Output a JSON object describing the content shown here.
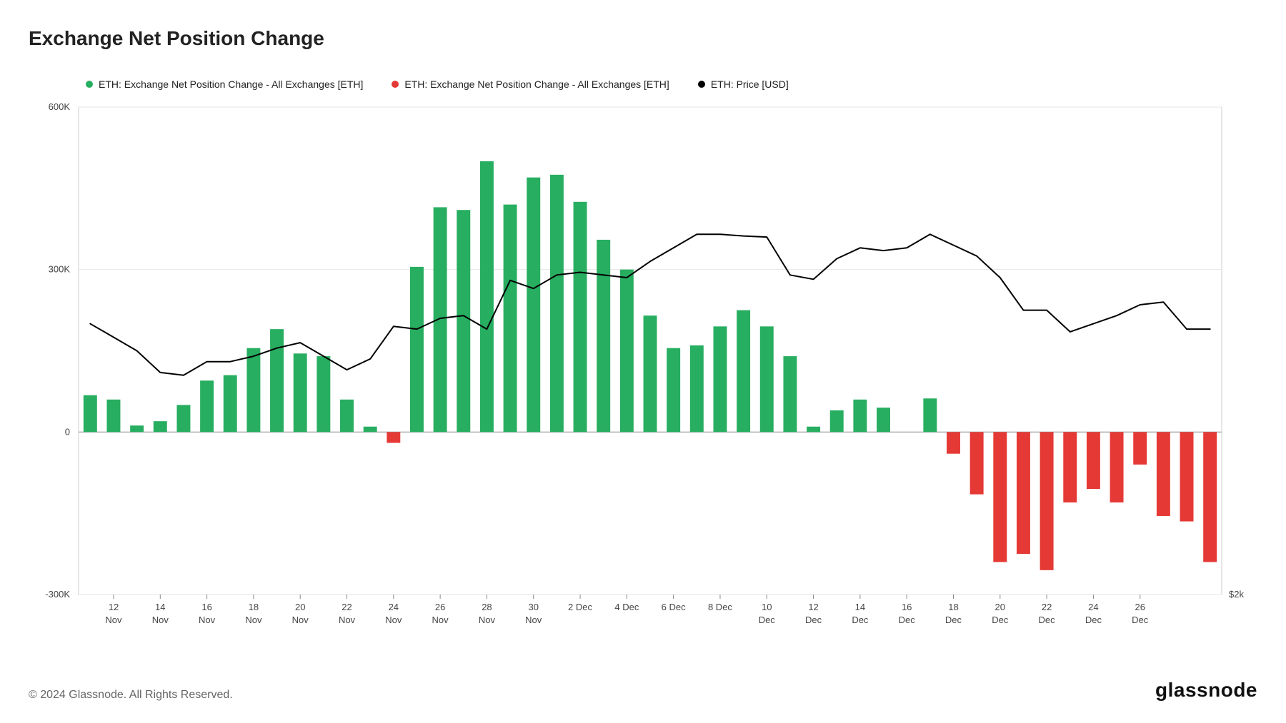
{
  "title": "Exchange Net Position Change",
  "footer_copyright": "© 2024 Glassnode. All Rights Reserved.",
  "footer_brand": "glassnode",
  "legend": [
    {
      "label": "ETH: Exchange Net Position Change - All Exchanges [ETH]",
      "color": "#27ae60",
      "marker": "circle"
    },
    {
      "label": "ETH: Exchange Net Position Change - All Exchanges [ETH]",
      "color": "#e53935",
      "marker": "circle"
    },
    {
      "label": "ETH: Price [USD]",
      "color": "#000000",
      "marker": "circle"
    }
  ],
  "chart": {
    "type": "bar+line",
    "background_color": "#ffffff",
    "plot_border_color": "#cccccc",
    "grid_color": "#e6e6e6",
    "baseline_color": "#999999",
    "colors": {
      "positive": "#27ae60",
      "negative": "#e53935",
      "line": "#000000"
    },
    "left_axis": {
      "min": -300000,
      "max": 600000,
      "ticks": [
        {
          "v": 600000,
          "label": "600K"
        },
        {
          "v": 300000,
          "label": "300K"
        },
        {
          "v": 0,
          "label": "0"
        },
        {
          "v": -300000,
          "label": "-300K"
        }
      ]
    },
    "right_axis": {
      "ticks": [
        {
          "y_at_left_value": -300000,
          "label": "$2k"
        }
      ]
    },
    "x_ticks": [
      {
        "idx": 1,
        "line1": "12",
        "line2": "Nov"
      },
      {
        "idx": 3,
        "line1": "14",
        "line2": "Nov"
      },
      {
        "idx": 5,
        "line1": "16",
        "line2": "Nov"
      },
      {
        "idx": 7,
        "line1": "18",
        "line2": "Nov"
      },
      {
        "idx": 9,
        "line1": "20",
        "line2": "Nov"
      },
      {
        "idx": 11,
        "line1": "22",
        "line2": "Nov"
      },
      {
        "idx": 13,
        "line1": "24",
        "line2": "Nov"
      },
      {
        "idx": 15,
        "line1": "26",
        "line2": "Nov"
      },
      {
        "idx": 17,
        "line1": "28",
        "line2": "Nov"
      },
      {
        "idx": 19,
        "line1": "30",
        "line2": "Nov"
      },
      {
        "idx": 21,
        "line1": "2 Dec",
        "line2": ""
      },
      {
        "idx": 23,
        "line1": "4 Dec",
        "line2": ""
      },
      {
        "idx": 25,
        "line1": "6 Dec",
        "line2": ""
      },
      {
        "idx": 27,
        "line1": "8 Dec",
        "line2": ""
      },
      {
        "idx": 29,
        "line1": "10",
        "line2": "Dec"
      },
      {
        "idx": 31,
        "line1": "12",
        "line2": "Dec"
      },
      {
        "idx": 33,
        "line1": "14",
        "line2": "Dec"
      },
      {
        "idx": 35,
        "line1": "16",
        "line2": "Dec"
      },
      {
        "idx": 37,
        "line1": "18",
        "line2": "Dec"
      },
      {
        "idx": 39,
        "line1": "20",
        "line2": "Dec"
      },
      {
        "idx": 41,
        "line1": "22",
        "line2": "Dec"
      },
      {
        "idx": 43,
        "line1": "24",
        "line2": "Dec"
      },
      {
        "idx": 45,
        "line1": "26",
        "line2": "Dec"
      }
    ],
    "bars": [
      68000,
      60000,
      12000,
      20000,
      50000,
      95000,
      105000,
      155000,
      190000,
      145000,
      140000,
      60000,
      10000,
      -20000,
      305000,
      415000,
      410000,
      500000,
      420000,
      470000,
      475000,
      425000,
      355000,
      300000,
      215000,
      155000,
      160000,
      195000,
      225000,
      195000,
      140000,
      10000,
      40000,
      60000,
      45000,
      0,
      62000,
      -40000,
      -115000,
      -240000,
      -225000,
      -255000,
      -130000,
      -105000,
      -130000,
      -60000,
      -155000,
      -165000,
      -240000
    ],
    "bar_width_ratio": 0.58,
    "price_line": [
      200000,
      175000,
      150000,
      110000,
      105000,
      130000,
      130000,
      140000,
      155000,
      165000,
      140000,
      115000,
      135000,
      195000,
      190000,
      210000,
      215000,
      190000,
      280000,
      265000,
      290000,
      295000,
      290000,
      285000,
      315000,
      340000,
      365000,
      365000,
      362000,
      360000,
      290000,
      282000,
      320000,
      340000,
      335000,
      340000,
      365000,
      345000,
      325000,
      285000,
      225000,
      225000,
      185000,
      200000,
      215000,
      235000,
      240000,
      190000,
      190000
    ]
  }
}
